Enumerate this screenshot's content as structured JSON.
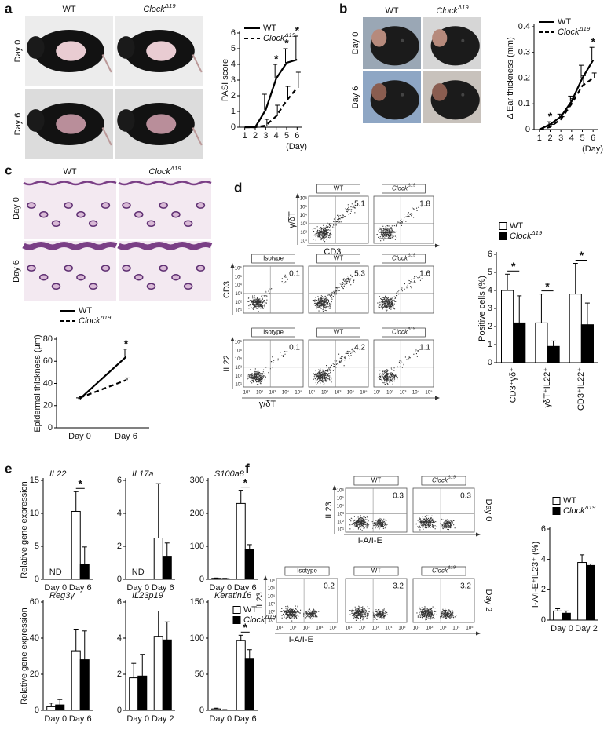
{
  "chart_data": [
    {
      "type": "line",
      "ylabel": "PASI score",
      "xlabel": "(Day)",
      "x": [
        1,
        2,
        3,
        4,
        5,
        6
      ],
      "xlim": [
        0.5,
        6.5
      ],
      "xticks": [
        1,
        2,
        3,
        4,
        5,
        6
      ],
      "ylim": [
        0,
        6
      ],
      "yticks": [
        0,
        1,
        2,
        3,
        4,
        5,
        6
      ],
      "legend": "upper left",
      "series": [
        {
          "name": "WT",
          "color": "#000000",
          "dash": false,
          "values": [
            0,
            0,
            1.1,
            3.1,
            4.1,
            4.3
          ],
          "errors": [
            0,
            0,
            1.0,
            0.9,
            0.9,
            1.5
          ]
        },
        {
          "name": "ClockΔ19",
          "color": "#000000",
          "dash": true,
          "values": [
            0,
            0,
            0.1,
            0.7,
            1.7,
            2.5
          ],
          "errors": [
            0,
            0,
            0.4,
            0.7,
            0.9,
            1.0
          ]
        }
      ],
      "annotations": [
        {
          "text": "*",
          "at": 4
        },
        {
          "text": "*",
          "at": 5
        },
        {
          "text": "*",
          "at": 6
        }
      ]
    },
    {
      "type": "line",
      "ylabel": "Δ Ear thickness (mm)",
      "xlabel": "(Day)",
      "x": [
        1,
        2,
        3,
        4,
        5,
        6
      ],
      "xlim": [
        0.5,
        6.5
      ],
      "xticks": [
        1,
        2,
        3,
        4,
        5,
        6
      ],
      "ylim": [
        0,
        0.4
      ],
      "yticks": [
        0,
        0.1,
        0.2,
        0.3,
        0.4
      ],
      "legend": "upper left",
      "series": [
        {
          "name": "WT",
          "color": "#000000",
          "dash": false,
          "values": [
            0,
            0.02,
            0.05,
            0.11,
            0.2,
            0.27
          ],
          "errors": [
            0,
            0.01,
            0.01,
            0.02,
            0.05,
            0.05
          ]
        },
        {
          "name": "ClockΔ19",
          "color": "#000000",
          "dash": true,
          "values": [
            0,
            0.01,
            0.04,
            0.1,
            0.17,
            0.2
          ],
          "errors": [
            0,
            0.01,
            0.01,
            0.02,
            0.04,
            0.02
          ]
        }
      ],
      "annotations": [
        {
          "text": "*",
          "at": 2
        },
        {
          "text": "*",
          "at": 6
        }
      ]
    },
    {
      "type": "line",
      "ylabel": "Epidermal thickness (μm)",
      "categories": [
        "Day 0",
        "Day 6"
      ],
      "ylim": [
        0,
        80
      ],
      "yticks": [
        0,
        20,
        40,
        60,
        80
      ],
      "legend": "top",
      "series": [
        {
          "name": "WT",
          "color": "#000000",
          "dash": false,
          "values": [
            26,
            64
          ],
          "errors": [
            1,
            7
          ]
        },
        {
          "name": "ClockΔ19",
          "color": "#000000",
          "dash": true,
          "values": [
            27,
            43
          ],
          "errors": [
            1,
            2
          ]
        }
      ],
      "annotations": [
        {
          "text": "*",
          "at": 1
        }
      ]
    },
    {
      "type": "bar",
      "ylabel": "Positive cells (%)",
      "categories": [
        "CD3⁺γδ⁺",
        "γδT⁺IL22⁺",
        "CD3⁺IL22⁺"
      ],
      "rotate_labels": true,
      "ylim": [
        0,
        6
      ],
      "yticks": [
        0,
        1,
        2,
        3,
        4,
        5,
        6
      ],
      "legend": "top",
      "series": [
        {
          "name": "WT",
          "color": "#ffffff",
          "values": [
            4.0,
            2.2,
            3.8
          ],
          "errors": [
            0.9,
            1.6,
            1.7
          ]
        },
        {
          "name": "ClockΔ19",
          "color": "#000000",
          "values": [
            2.2,
            0.9,
            2.1
          ],
          "errors": [
            1.5,
            0.3,
            1.2
          ]
        }
      ],
      "annotations": [
        {
          "text": "*",
          "at": 0
        },
        {
          "text": "*",
          "at": 1
        },
        {
          "text": "*",
          "at": 2
        }
      ]
    },
    {
      "type": "bar",
      "title": "IL22",
      "ylabel": "Relative gene expression",
      "categories": [
        "Day 0",
        "Day 6"
      ],
      "ylim": [
        0,
        15
      ],
      "yticks": [
        0,
        5,
        10,
        15
      ],
      "series": [
        {
          "color": "#ffffff",
          "values": [
            null,
            10.3
          ],
          "errors": [
            null,
            3.0
          ]
        },
        {
          "color": "#000000",
          "values": [
            null,
            2.3
          ],
          "errors": [
            null,
            2.6
          ]
        }
      ],
      "annotations": [
        {
          "text": "ND",
          "at": 0
        },
        {
          "text": "*",
          "at": 1
        }
      ]
    },
    {
      "type": "bar",
      "title": "IL17a",
      "categories": [
        "Day 0",
        "Day 6"
      ],
      "ylim": [
        0,
        6
      ],
      "yticks": [
        0,
        2,
        4,
        6
      ],
      "series": [
        {
          "color": "#ffffff",
          "values": [
            null,
            2.5
          ],
          "errors": [
            null,
            3.3
          ]
        },
        {
          "color": "#000000",
          "values": [
            null,
            1.4
          ],
          "errors": [
            null,
            0.8
          ]
        }
      ],
      "annotations": [
        {
          "text": "ND",
          "at": 0
        }
      ]
    },
    {
      "type": "bar",
      "title": "S100a8",
      "categories": [
        "Day 0",
        "Day 6"
      ],
      "ylim": [
        0,
        300
      ],
      "yticks": [
        0,
        100,
        200,
        300
      ],
      "series": [
        {
          "color": "#ffffff",
          "values": [
            3,
            230
          ],
          "errors": [
            1,
            40
          ]
        },
        {
          "color": "#000000",
          "values": [
            2,
            90
          ],
          "errors": [
            1,
            15
          ]
        }
      ],
      "annotations": [
        {
          "text": "*",
          "at": 1
        }
      ]
    },
    {
      "type": "bar",
      "title": "Reg3γ",
      "ylabel": "Relative gene expression",
      "categories": [
        "Day 0",
        "Day 6"
      ],
      "ylim": [
        0,
        60
      ],
      "yticks": [
        0,
        20,
        40,
        60
      ],
      "series": [
        {
          "color": "#ffffff",
          "values": [
            2,
            33
          ],
          "errors": [
            2,
            12
          ]
        },
        {
          "color": "#000000",
          "values": [
            3,
            28
          ],
          "errors": [
            3,
            16
          ]
        }
      ]
    },
    {
      "type": "bar",
      "title": "IL23p19",
      "categories": [
        "Day 0",
        "Day 2"
      ],
      "ylim": [
        0,
        6
      ],
      "yticks": [
        0,
        2,
        4,
        6
      ],
      "series": [
        {
          "color": "#ffffff",
          "values": [
            1.8,
            4.1
          ],
          "errors": [
            0.8,
            1.4
          ]
        },
        {
          "color": "#000000",
          "values": [
            1.9,
            3.9
          ],
          "errors": [
            1.2,
            1.0
          ]
        }
      ]
    },
    {
      "type": "bar",
      "title": "Keratin16",
      "categories": [
        "Day 0",
        "Day 6"
      ],
      "ylim": [
        0,
        150
      ],
      "yticks": [
        0,
        50,
        100,
        150
      ],
      "legend": "upper right",
      "series": [
        {
          "name": "WT",
          "color": "#ffffff",
          "values": [
            2,
            97
          ],
          "errors": [
            1,
            7
          ]
        },
        {
          "name": "ClockΔ19",
          "color": "#000000",
          "values": [
            0.5,
            72
          ],
          "errors": [
            0.5,
            12
          ]
        }
      ],
      "annotations": [
        {
          "text": "*",
          "at": 1
        }
      ]
    },
    {
      "type": "bar",
      "ylabel": "I-A/I-E⁺IL23⁺ (%)",
      "categories": [
        "Day 0",
        "Day 2"
      ],
      "ylim": [
        0,
        6
      ],
      "yticks": [
        0,
        2,
        4,
        6
      ],
      "legend": "top",
      "series": [
        {
          "name": "WT",
          "color": "#ffffff",
          "values": [
            0.6,
            3.8
          ],
          "errors": [
            0.15,
            0.5
          ]
        },
        {
          "name": "ClockΔ19",
          "color": "#000000",
          "values": [
            0.45,
            3.6
          ],
          "errors": [
            0.15,
            0.1
          ]
        }
      ]
    }
  ],
  "figure": {
    "letters": [
      "a",
      "b",
      "c",
      "d",
      "e",
      "f"
    ],
    "photos": {
      "a": {
        "columns": [
          "WT",
          "ClockΔ19"
        ],
        "rows": [
          "Day 0",
          "Day 6"
        ]
      },
      "b": {
        "columns": [
          "WT",
          "ClockΔ19"
        ],
        "rows": [
          "Day 0",
          "Day 6"
        ]
      },
      "c": {
        "columns": [
          "WT",
          "ClockΔ19"
        ],
        "rows": [
          "Day 0",
          "Day 6"
        ]
      }
    },
    "flow_ticks": [
      "10¹",
      "10²",
      "10³",
      "10⁴",
      "10⁵",
      "10⁶"
    ],
    "d": {
      "rows": [
        {
          "ylabel": "γ/δT",
          "xlabel": "CD3",
          "plots": [
            {
              "header": "WT",
              "value": 5.1
            },
            {
              "header": "ClockΔ19",
              "value": 1.8
            }
          ]
        },
        {
          "ylabel": "CD3",
          "plots": [
            {
              "header": "Isotype",
              "value": 0.1
            },
            {
              "header": "WT",
              "value": 5.3
            },
            {
              "header": "ClockΔ19",
              "value": 1.6
            }
          ]
        },
        {
          "ylabel": "IL22",
          "xlabel": "γ/δT",
          "plots": [
            {
              "header": "Isotype",
              "value": 0.1
            },
            {
              "header": "WT",
              "value": 4.2
            },
            {
              "header": "ClockΔ19",
              "value": 1.1
            }
          ]
        }
      ]
    },
    "f": {
      "rows": [
        {
          "ylabel": "IL23",
          "xlabel": "I-A/I-E",
          "side": "Day 0",
          "plots": [
            {
              "header": "WT",
              "value": 0.3
            },
            {
              "header": "ClockΔ19",
              "value": 0.3
            }
          ]
        },
        {
          "ylabel": "IL23",
          "xlabel": "I-A/I-E",
          "side": "Day 2",
          "plots": [
            {
              "header": "Isotype",
              "value": 0.2
            },
            {
              "header": "WT",
              "value": 3.2
            },
            {
              "header": "ClockΔ19",
              "value": 3.2
            }
          ]
        }
      ]
    }
  }
}
